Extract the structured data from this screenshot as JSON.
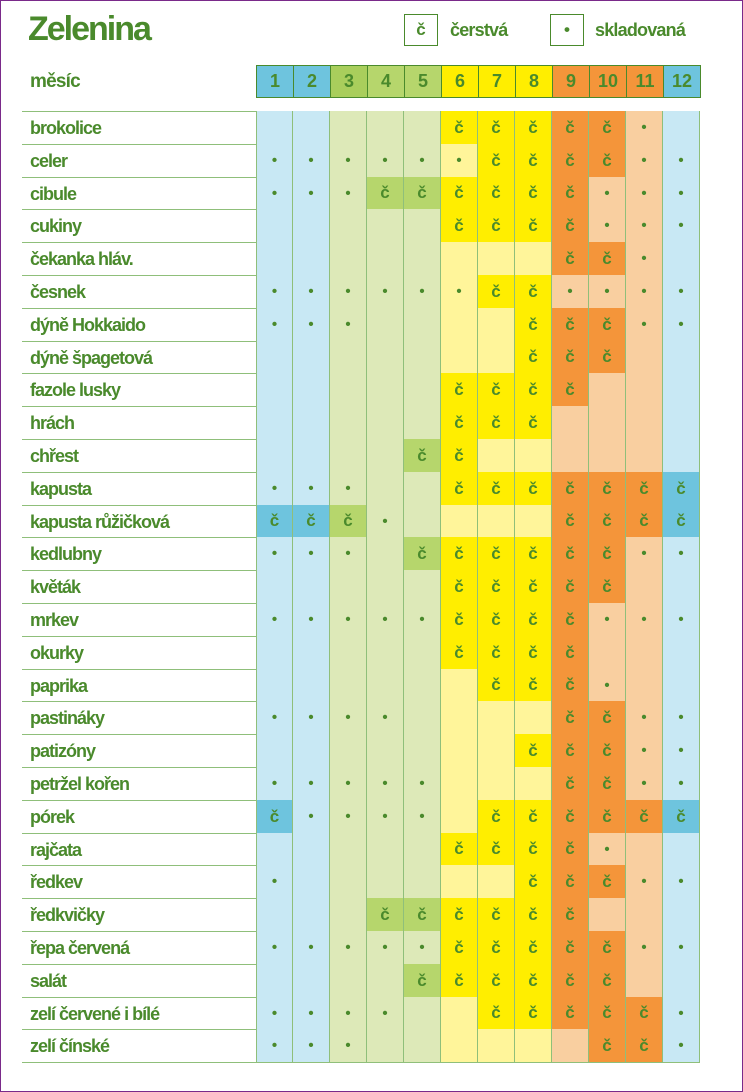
{
  "title": "Zelenina",
  "legend": {
    "fresh_symbol": "č",
    "fresh_label": "čerstvá",
    "stored_symbol": "•",
    "stored_label": "skladovaná"
  },
  "header_label": "měsíc",
  "months": [
    "1",
    "2",
    "3",
    "4",
    "5",
    "6",
    "7",
    "8",
    "9",
    "10",
    "11",
    "12"
  ],
  "colors": {
    "m1_2_12": "#c8e8f4",
    "m1_2_12_head": "#6ec4de",
    "m3_5": "#dde9b8",
    "m3_head": "#a9ce5c",
    "m4_5_head": "#b6d66c",
    "m6_8": "#fff59a",
    "m6_8_head": "#ffee00",
    "m9_11": "#f9cfa0",
    "m9_11_head": "#f4953a",
    "text": "#4a8a2c"
  },
  "legend_codes": {
    "c": "fresh",
    "d": "stored",
    "": "none"
  },
  "rows": [
    {
      "name": "brokolice",
      "cells": [
        "",
        "",
        "",
        "",
        "",
        "c",
        "c",
        "c",
        "c",
        "c",
        "d",
        ""
      ]
    },
    {
      "name": "celer",
      "cells": [
        "d",
        "d",
        "d",
        "d",
        "d",
        "d",
        "c",
        "c",
        "c",
        "c",
        "d",
        "d"
      ]
    },
    {
      "name": "cibule",
      "cells": [
        "d",
        "d",
        "d",
        "c",
        "c",
        "c",
        "c",
        "c",
        "c",
        "d",
        "d",
        "d"
      ]
    },
    {
      "name": "cukiny",
      "cells": [
        "",
        "",
        "",
        "",
        "",
        "c",
        "c",
        "c",
        "c",
        "d",
        "d",
        "d"
      ]
    },
    {
      "name": "čekanka hláv.",
      "cells": [
        "",
        "",
        "",
        "",
        "",
        "",
        "",
        "",
        "c",
        "c",
        "d",
        ""
      ]
    },
    {
      "name": "česnek",
      "cells": [
        "d",
        "d",
        "d",
        "d",
        "d",
        "d",
        "c",
        "c",
        "d",
        "d",
        "d",
        "d"
      ]
    },
    {
      "name": "dýně Hokkaido",
      "cells": [
        "d",
        "d",
        "d",
        "",
        "",
        "",
        "",
        "c",
        "c",
        "c",
        "d",
        "d"
      ]
    },
    {
      "name": "dýně špagetová",
      "cells": [
        "",
        "",
        "",
        "",
        "",
        "",
        "",
        "c",
        "c",
        "c",
        "",
        ""
      ]
    },
    {
      "name": "fazole lusky",
      "cells": [
        "",
        "",
        "",
        "",
        "",
        "c",
        "c",
        "c",
        "c",
        "",
        "",
        ""
      ]
    },
    {
      "name": "hrách",
      "cells": [
        "",
        "",
        "",
        "",
        "",
        "c",
        "c",
        "c",
        "",
        "",
        "",
        ""
      ]
    },
    {
      "name": "chřest",
      "cells": [
        "",
        "",
        "",
        "",
        "c",
        "c",
        "",
        "",
        "",
        "",
        "",
        ""
      ]
    },
    {
      "name": "kapusta",
      "cells": [
        "d",
        "d",
        "d",
        "",
        "",
        "c",
        "c",
        "c",
        "c",
        "c",
        "c",
        "c"
      ]
    },
    {
      "name": "kapusta růžičková",
      "cells": [
        "c",
        "c",
        "c",
        "d",
        "",
        "",
        "",
        "",
        "c",
        "c",
        "c",
        "c"
      ]
    },
    {
      "name": "kedlubny",
      "cells": [
        "d",
        "d",
        "d",
        "",
        "c",
        "c",
        "c",
        "c",
        "c",
        "c",
        "d",
        "d"
      ]
    },
    {
      "name": "květák",
      "cells": [
        "",
        "",
        "",
        "",
        "",
        "c",
        "c",
        "c",
        "c",
        "c",
        "",
        ""
      ]
    },
    {
      "name": "mrkev",
      "cells": [
        "d",
        "d",
        "d",
        "d",
        "d",
        "c",
        "c",
        "c",
        "c",
        "d",
        "d",
        "d"
      ]
    },
    {
      "name": "okurky",
      "cells": [
        "",
        "",
        "",
        "",
        "",
        "c",
        "c",
        "c",
        "c",
        "",
        "",
        ""
      ]
    },
    {
      "name": "paprika",
      "cells": [
        "",
        "",
        "",
        "",
        "",
        "",
        "c",
        "c",
        "c",
        "d",
        "",
        ""
      ]
    },
    {
      "name": "pastináky",
      "cells": [
        "d",
        "d",
        "d",
        "d",
        "",
        "",
        "",
        "",
        "c",
        "c",
        "d",
        "d"
      ]
    },
    {
      "name": "patizóny",
      "cells": [
        "",
        "",
        "",
        "",
        "",
        "",
        "",
        "c",
        "c",
        "c",
        "d",
        "d"
      ]
    },
    {
      "name": "petržel kořen",
      "cells": [
        "d",
        "d",
        "d",
        "d",
        "d",
        "",
        "",
        "",
        "c",
        "c",
        "d",
        "d"
      ]
    },
    {
      "name": "pórek",
      "cells": [
        "c",
        "d",
        "d",
        "d",
        "d",
        "",
        "c",
        "c",
        "c",
        "c",
        "c",
        "c"
      ]
    },
    {
      "name": "rajčata",
      "cells": [
        "",
        "",
        "",
        "",
        "",
        "c",
        "c",
        "c",
        "c",
        "d",
        "",
        ""
      ]
    },
    {
      "name": "ředkev",
      "cells": [
        "d",
        "",
        "",
        "",
        "",
        "",
        "",
        "c",
        "c",
        "c",
        "d",
        "d"
      ]
    },
    {
      "name": "ředkvičky",
      "cells": [
        "",
        "",
        "",
        "c",
        "c",
        "c",
        "c",
        "c",
        "c",
        "",
        "",
        ""
      ]
    },
    {
      "name": "řepa červená",
      "cells": [
        "d",
        "d",
        "d",
        "d",
        "d",
        "c",
        "c",
        "c",
        "c",
        "c",
        "d",
        "d"
      ]
    },
    {
      "name": "salát",
      "cells": [
        "",
        "",
        "",
        "",
        "c",
        "c",
        "c",
        "c",
        "c",
        "c",
        "",
        ""
      ]
    },
    {
      "name": "zelí červené i bílé",
      "cells": [
        "d",
        "d",
        "d",
        "d",
        "",
        "",
        "c",
        "c",
        "c",
        "c",
        "c",
        "d"
      ]
    },
    {
      "name": "zelí čínské",
      "cells": [
        "d",
        "d",
        "d",
        "",
        "",
        "",
        "",
        "",
        "",
        "c",
        "c",
        "d"
      ]
    }
  ]
}
